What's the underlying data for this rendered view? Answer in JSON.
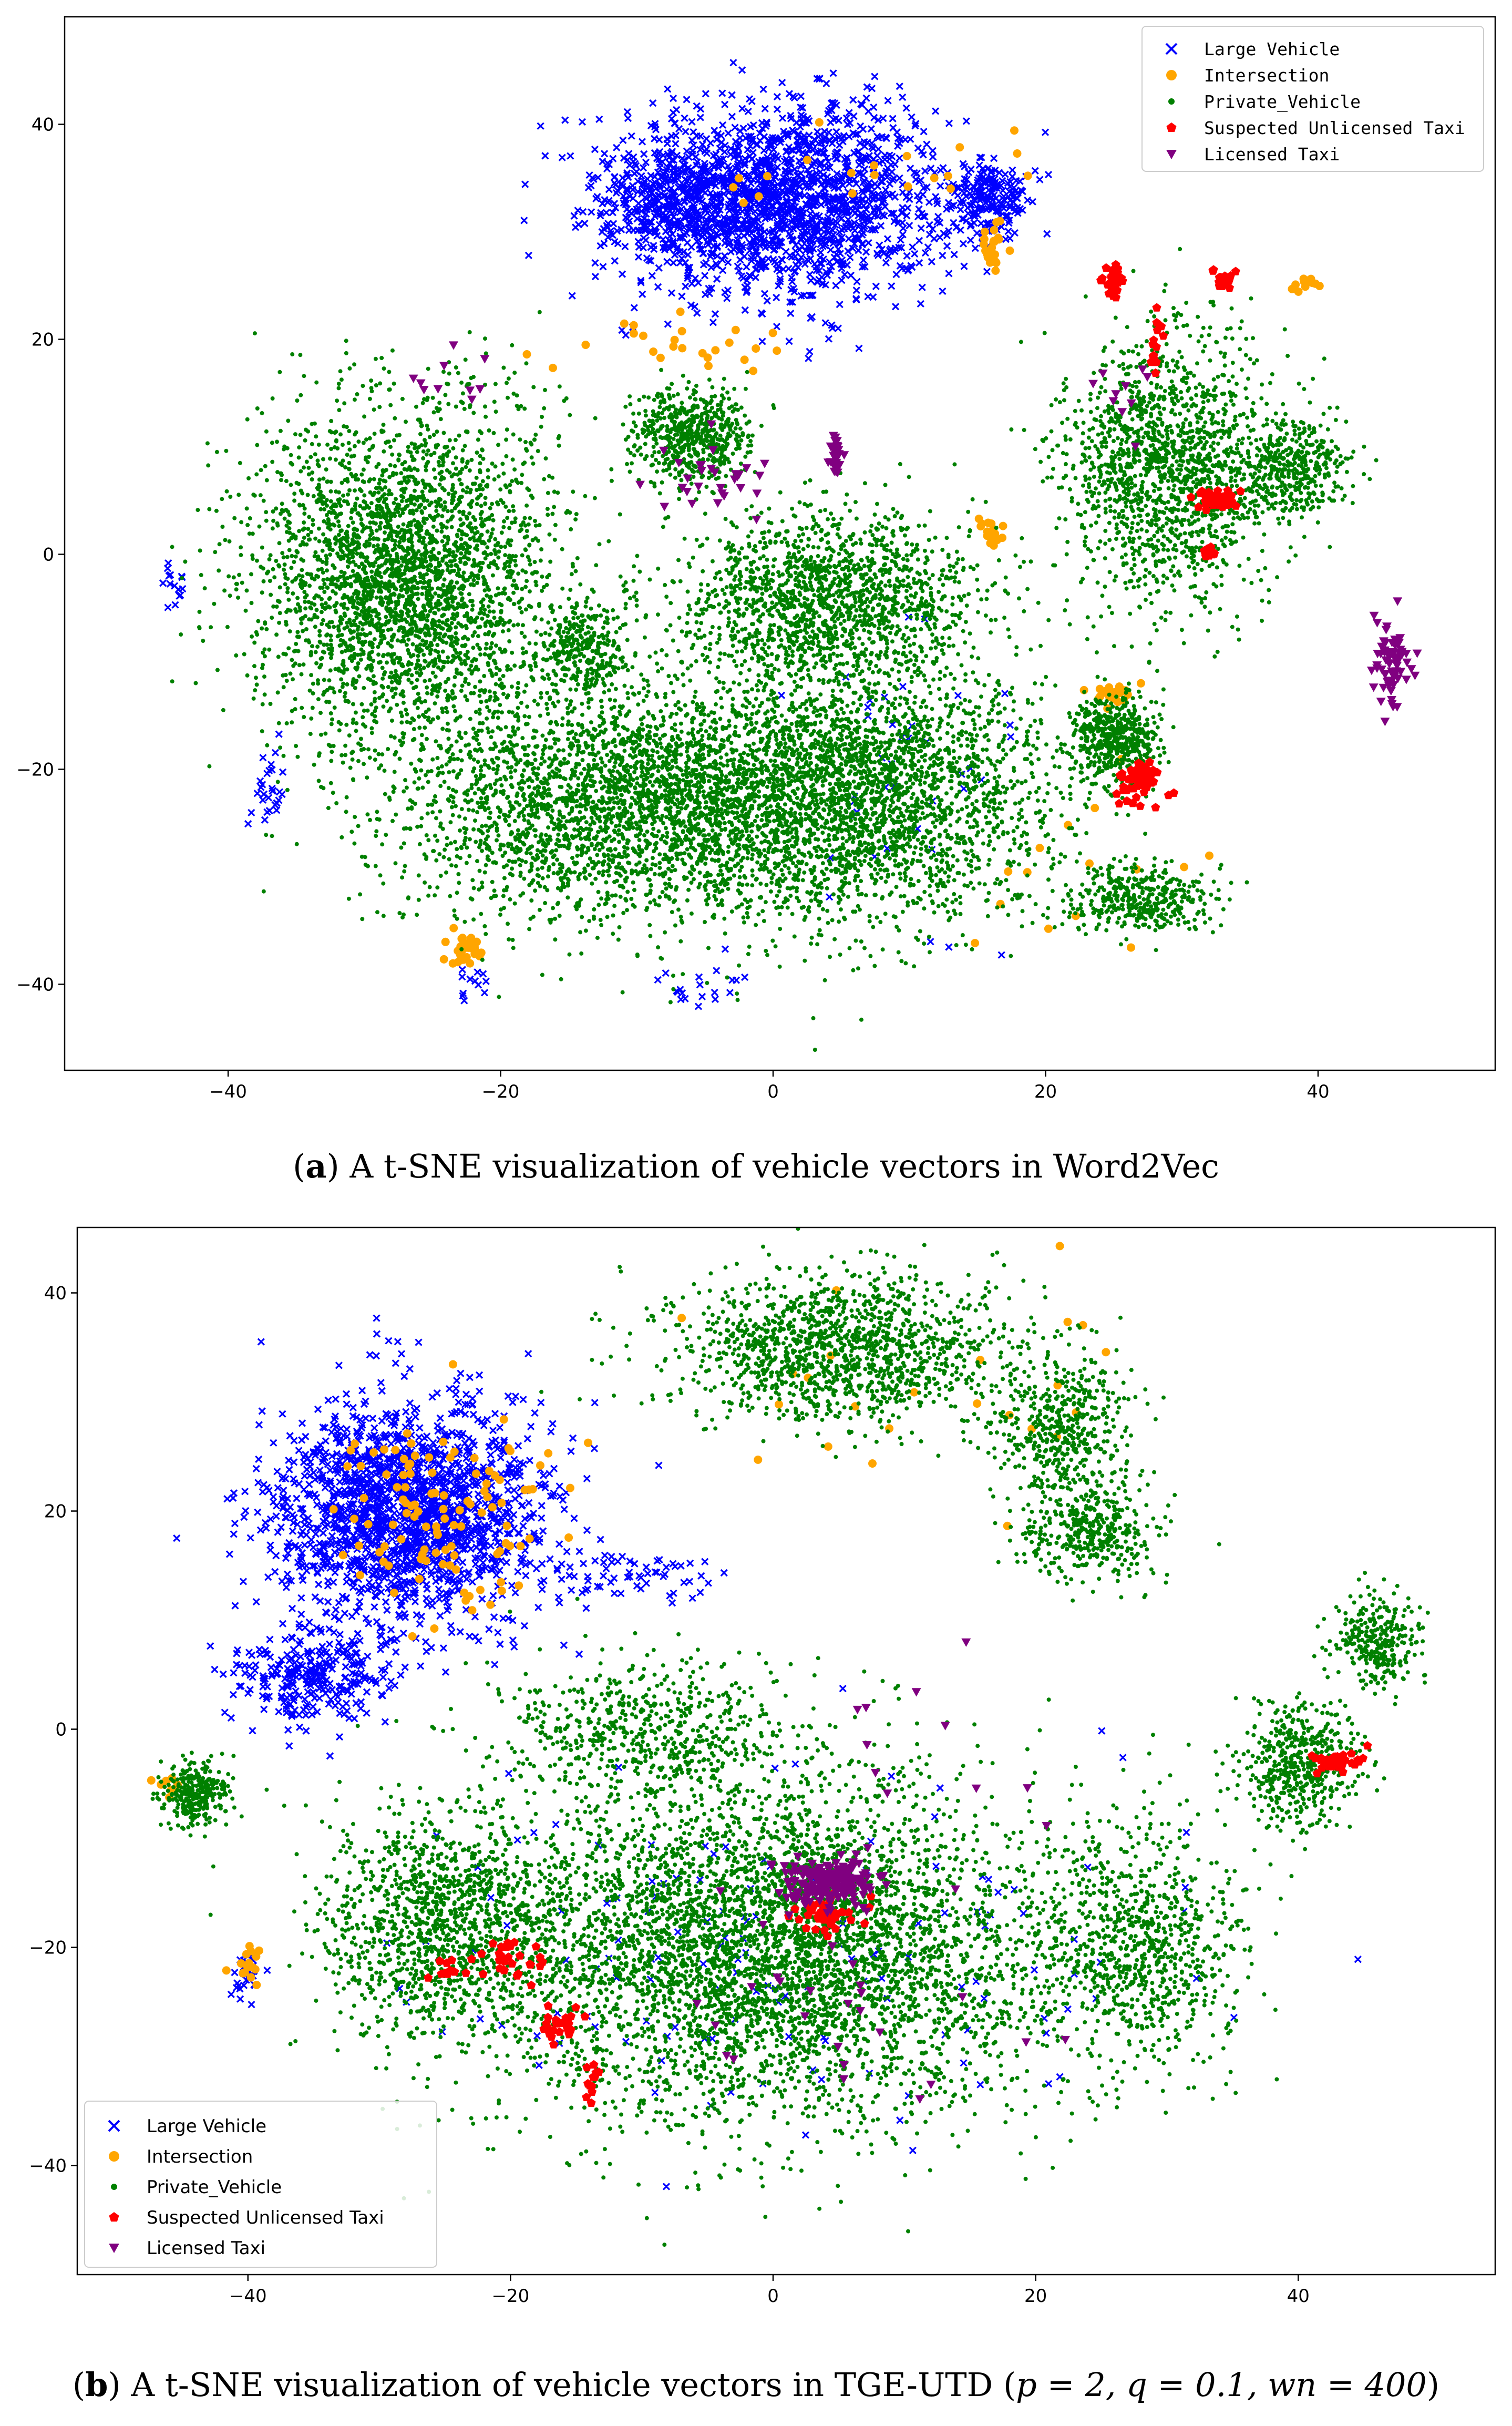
{
  "colors": {
    "large_vehicle": "#0000ff",
    "intersection": "#ffa500",
    "private_vehicle": "#008000",
    "suspected_taxi": "#ff0000",
    "licensed_taxi": "#800080"
  },
  "chart_data": [
    {
      "type": "scatter",
      "panel": "a",
      "caption_prefix": "(",
      "caption_letter": "a",
      "caption_text": ") A t-SNE visualization of vehicle vectors in Word2Vec",
      "xlim": [
        -52,
        53
      ],
      "ylim": [
        -48,
        50
      ],
      "xticks": [
        -40,
        -20,
        0,
        20,
        40
      ],
      "yticks": [
        -40,
        -20,
        0,
        20,
        40
      ],
      "grid": false,
      "legend_position": "top-right",
      "legend_font": "mono",
      "series": [
        {
          "name": "Large Vehicle",
          "marker": "x",
          "color": "#0000ff",
          "clusters": [
            [
              1,
              33,
              11,
              8,
              1700
            ],
            [
              -8,
              33,
              5,
              5,
              300
            ],
            [
              16,
              33,
              2.5,
              3,
              200
            ],
            [
              -37,
              -22,
              1,
              4,
              30
            ],
            [
              -44,
              -3,
              1,
              3,
              15
            ],
            [
              -22,
              -40,
              1,
              1.5,
              12
            ],
            [
              -5,
              -40,
              3,
              2,
              20
            ],
            [
              10,
              -20,
              8,
              12,
              40
            ]
          ]
        },
        {
          "name": "Intersection",
          "marker": "o",
          "color": "#ffa500",
          "clusters": [
            [
              -23,
              -37,
              1.2,
              1.3,
              30
            ],
            [
              25,
              -13,
              1.5,
              1.2,
              30
            ],
            [
              16,
              29,
              1,
              2,
              25
            ],
            [
              39,
              25,
              1,
              0.5,
              12
            ],
            [
              16,
              2,
              0.8,
              1.2,
              18
            ],
            [
              -8,
              20,
              10,
              3,
              25
            ],
            [
              10,
              36,
              10,
              5,
              20
            ],
            [
              20,
              -30,
              12,
              8,
              15
            ]
          ]
        },
        {
          "name": "Private_Vehicle",
          "marker": ".",
          "color": "#008000",
          "clusters": [
            [
              -27,
              -2,
              10,
              14,
              3200
            ],
            [
              -10,
              -23,
              16,
              10,
              3200
            ],
            [
              7,
              -22,
              13,
              11,
              2600
            ],
            [
              4,
              -4,
              10,
              7,
              1600
            ],
            [
              -6,
              11,
              4,
              4,
              600
            ],
            [
              29,
              8,
              7,
              11,
              1600
            ],
            [
              38,
              8,
              4,
              4,
              400
            ],
            [
              25,
              -17,
              3,
              3.5,
              500
            ],
            [
              27,
              -32,
              5,
              3,
              400
            ],
            [
              -14,
              -9,
              3,
              4,
              300
            ]
          ]
        },
        {
          "name": "Suspected Unlicensed Taxi",
          "marker": "p",
          "color": "#ff0000",
          "clusters": [
            [
              32.5,
              5,
              1.3,
              0.8,
              60
            ],
            [
              27,
              -21,
              1.6,
              2,
              60
            ],
            [
              25,
              25.5,
              0.6,
              1.2,
              30
            ],
            [
              33,
              25.5,
              0.6,
              0.8,
              25
            ],
            [
              28,
              19,
              0.6,
              2.5,
              15
            ],
            [
              32,
              0,
              0.5,
              0.5,
              10
            ]
          ]
        },
        {
          "name": "Licensed Taxi",
          "marker": "v",
          "color": "#800080",
          "clusters": [
            [
              45.5,
              -10,
              1.3,
              3.5,
              70
            ],
            [
              4.5,
              9,
              0.4,
              1.8,
              30
            ],
            [
              -5,
              7,
              4,
              3,
              30
            ],
            [
              -24,
              16,
              3,
              3,
              10
            ],
            [
              25,
              15,
              3,
              3,
              10
            ]
          ]
        }
      ]
    },
    {
      "type": "scatter",
      "panel": "b",
      "caption_prefix": "(",
      "caption_letter": "b",
      "caption_text": ") A t-SNE visualization of vehicle vectors in TGE-UTD (",
      "caption_math": "p = 2, q = 0.1, wn = 400",
      "caption_suffix": ")",
      "xlim": [
        -53,
        55
      ],
      "ylim": [
        -50,
        46
      ],
      "xticks": [
        -40,
        -20,
        0,
        20,
        40
      ],
      "yticks": [
        -40,
        -20,
        0,
        20,
        40
      ],
      "grid": false,
      "legend_position": "bottom-left",
      "legend_font": "sans",
      "series": [
        {
          "name": "Large Vehicle",
          "marker": "x",
          "color": "#0000ff",
          "clusters": [
            [
              -28,
              20,
              9,
              9,
              1800
            ],
            [
              -35,
              5,
              5,
              4,
              300
            ],
            [
              -40,
              -22,
              1,
              2,
              40
            ],
            [
              -10,
              14,
              5,
              2,
              60
            ],
            [
              0,
              -20,
              24,
              16,
              150
            ]
          ]
        },
        {
          "name": "Intersection",
          "marker": "o",
          "color": "#ffa500",
          "clusters": [
            [
              -25,
              20,
              7,
              8,
              110
            ],
            [
              -40,
              -22,
              1,
              2,
              15
            ],
            [
              -46,
              -5,
              1,
              1,
              8
            ],
            [
              10,
              30,
              20,
              10,
              25
            ]
          ]
        },
        {
          "name": "Private_Vehicle",
          "marker": ".",
          "color": "#008000",
          "clusters": [
            [
              0,
              -20,
              20,
              14,
              5000
            ],
            [
              -25,
              -18,
              8,
              9,
              1200
            ],
            [
              28,
              -20,
              7,
              10,
              800
            ],
            [
              -10,
              0,
              10,
              6,
              600
            ],
            [
              5,
              35,
              12,
              6,
              1400
            ],
            [
              22,
              28,
              5,
              6,
              500
            ],
            [
              24,
              18,
              5,
              4,
              400
            ],
            [
              40,
              -3,
              4,
              5,
              500
            ],
            [
              46,
              8,
              3,
              4,
              300
            ],
            [
              -44,
              -6,
              2.5,
              2.5,
              300
            ]
          ]
        },
        {
          "name": "Suspected Unlicensed Taxi",
          "marker": "p",
          "color": "#ff0000",
          "clusters": [
            [
              -20,
              -21,
              2.5,
              2,
              30
            ],
            [
              -16,
              -27,
              1.5,
              1.5,
              25
            ],
            [
              -14,
              -32,
              0.6,
              1.5,
              15
            ],
            [
              -25,
              -22,
              1,
              1,
              10
            ],
            [
              43,
              -3,
              1.5,
              1,
              40
            ],
            [
              4,
              -17,
              2.5,
              1.5,
              50
            ]
          ]
        },
        {
          "name": "Licensed Taxi",
          "marker": "v",
          "color": "#800080",
          "clusters": [
            [
              4,
              -14,
              3,
              2,
              200
            ],
            [
              4,
              -22,
              14,
              12,
              30
            ],
            [
              10,
              0,
              10,
              8,
              10
            ]
          ]
        }
      ]
    }
  ]
}
